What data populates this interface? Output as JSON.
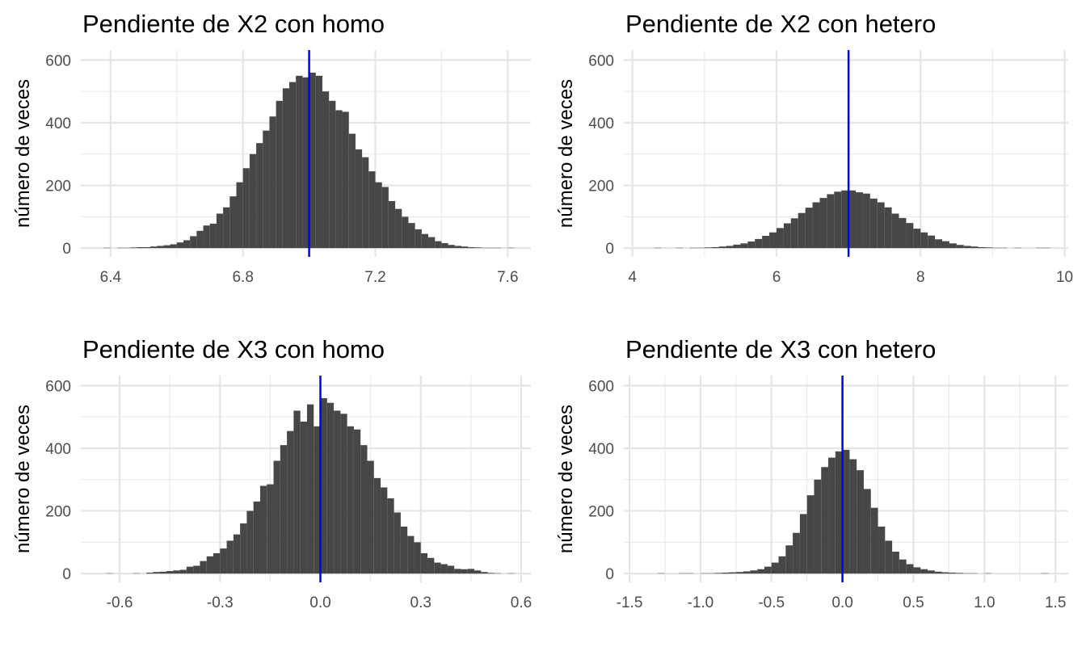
{
  "chart_data": [
    {
      "type": "histogram",
      "title": "Pendiente de X2 con homo",
      "y_label": "número de veces",
      "color": "#474747",
      "grid": true,
      "vline": {
        "value": 7,
        "color": "#0000ff"
      },
      "bins": [
        6.38,
        6.4,
        6.42,
        6.44,
        6.46,
        6.48,
        6.5,
        6.52,
        6.54,
        6.56,
        6.58,
        6.6,
        6.62,
        6.64,
        6.66,
        6.68,
        6.7,
        6.72,
        6.74,
        6.76,
        6.78,
        6.8,
        6.82,
        6.84,
        6.86,
        6.88,
        6.9,
        6.92,
        6.94,
        6.96,
        6.98,
        7.0,
        7.02,
        7.04,
        7.06,
        7.08,
        7.1,
        7.12,
        7.14,
        7.16,
        7.18,
        7.2,
        7.22,
        7.24,
        7.26,
        7.28,
        7.3,
        7.32,
        7.34,
        7.36,
        7.38,
        7.4,
        7.42,
        7.44,
        7.46,
        7.48,
        7.5,
        7.52,
        7.54,
        7.56,
        7.58,
        7.6,
        7.62
      ],
      "values": [
        1,
        0,
        1,
        1,
        2,
        3,
        3,
        5,
        7,
        9,
        12,
        18,
        25,
        38,
        55,
        72,
        78,
        110,
        130,
        165,
        210,
        255,
        300,
        335,
        375,
        420,
        470,
        510,
        530,
        550,
        545,
        560,
        550,
        500,
        470,
        440,
        435,
        365,
        315,
        290,
        245,
        210,
        195,
        150,
        125,
        100,
        80,
        60,
        45,
        35,
        22,
        16,
        10,
        7,
        5,
        3,
        2,
        1,
        1,
        1,
        0,
        1
      ],
      "xlim": [
        6.31,
        7.67
      ],
      "xticks": [
        6.4,
        6.8,
        7.2,
        7.6
      ],
      "ylim": [
        -28,
        632
      ],
      "yticks": [
        0,
        200,
        400,
        600
      ]
    },
    {
      "type": "histogram",
      "title": "Pendiente de X2 con hetero",
      "y_label": "número de veces",
      "color": "#474747",
      "grid": true,
      "vline": {
        "value": 7,
        "color": "#0000ff"
      },
      "bins": [
        4.2,
        4.3,
        4.4,
        4.5,
        4.6,
        4.7,
        4.8,
        4.9,
        5.0,
        5.1,
        5.2,
        5.3,
        5.4,
        5.5,
        5.6,
        5.7,
        5.8,
        5.9,
        6.0,
        6.1,
        6.2,
        6.3,
        6.4,
        6.5,
        6.6,
        6.7,
        6.8,
        6.9,
        7.0,
        7.1,
        7.2,
        7.3,
        7.4,
        7.5,
        7.6,
        7.7,
        7.8,
        7.9,
        8.0,
        8.1,
        8.2,
        8.3,
        8.4,
        8.5,
        8.6,
        8.7,
        8.8,
        8.9,
        9.0,
        9.1,
        9.2,
        9.3,
        9.4,
        9.5,
        9.6,
        9.7,
        9.8
      ],
      "values": [
        0,
        1,
        0,
        0,
        1,
        0,
        1,
        1,
        2,
        3,
        5,
        7,
        11,
        15,
        21,
        29,
        39,
        50,
        64,
        79,
        95,
        112,
        129,
        146,
        160,
        172,
        180,
        184,
        184,
        178,
        174,
        158,
        146,
        130,
        110,
        96,
        80,
        62,
        50,
        40,
        28,
        22,
        15,
        10,
        7,
        5,
        3,
        2,
        1,
        1,
        0,
        1,
        0,
        0,
        1,
        1
      ],
      "xlim": [
        3.88,
        10.05
      ],
      "xticks": [
        4,
        6,
        8,
        10
      ],
      "ylim": [
        -28,
        632
      ],
      "yticks": [
        0,
        200,
        400,
        600
      ]
    },
    {
      "type": "histogram",
      "title": "Pendiente de X3 con homo",
      "y_label": "número de veces",
      "color": "#474747",
      "grid": true,
      "vline": {
        "value": 0,
        "color": "#0000ff"
      },
      "bins": [
        -0.64,
        -0.62,
        -0.6,
        -0.58,
        -0.56,
        -0.54,
        -0.52,
        -0.5,
        -0.48,
        -0.46,
        -0.44,
        -0.42,
        -0.4,
        -0.38,
        -0.36,
        -0.34,
        -0.32,
        -0.3,
        -0.28,
        -0.26,
        -0.24,
        -0.22,
        -0.2,
        -0.18,
        -0.16,
        -0.14,
        -0.12,
        -0.1,
        -0.08,
        -0.06,
        -0.04,
        -0.02,
        0,
        0.02,
        0.04,
        0.06,
        0.08,
        0.1,
        0.12,
        0.14,
        0.16,
        0.18,
        0.2,
        0.22,
        0.24,
        0.26,
        0.28,
        0.3,
        0.32,
        0.34,
        0.36,
        0.38,
        0.4,
        0.42,
        0.44,
        0.46,
        0.48,
        0.5,
        0.52,
        0.54,
        0.56,
        0.58
      ],
      "values": [
        1,
        0,
        0,
        0,
        1,
        0,
        3,
        5,
        6,
        8,
        10,
        12,
        22,
        25,
        40,
        55,
        65,
        80,
        105,
        125,
        160,
        200,
        230,
        280,
        285,
        360,
        410,
        455,
        520,
        485,
        540,
        470,
        560,
        545,
        520,
        510,
        470,
        460,
        410,
        360,
        305,
        275,
        240,
        195,
        150,
        120,
        100,
        65,
        50,
        35,
        30,
        25,
        15,
        14,
        15,
        10,
        5,
        2,
        1,
        0,
        1
      ],
      "xlim": [
        -0.716,
        0.629
      ],
      "xticks": [
        -0.6,
        -0.3,
        {
          "value": 0,
          "label": "0.0"
        },
        0.3,
        0.6
      ],
      "ylim": [
        -28,
        632
      ],
      "yticks": [
        0,
        200,
        400,
        600
      ]
    },
    {
      "type": "histogram",
      "title": "Pendiente de X3 con hetero",
      "y_label": "número de veces",
      "color": "#474747",
      "grid": true,
      "vline": {
        "value": 0,
        "color": "#0000ff"
      },
      "bins": [
        -1.4,
        -1.35,
        -1.3,
        -1.25,
        -1.2,
        -1.15,
        -1.1,
        -1.05,
        -1.0,
        -0.95,
        -0.9,
        -0.85,
        -0.8,
        -0.75,
        -0.7,
        -0.65,
        -0.6,
        -0.55,
        -0.5,
        -0.45,
        -0.4,
        -0.35,
        -0.3,
        -0.25,
        -0.2,
        -0.15,
        -0.1,
        -0.05,
        0,
        0.05,
        0.1,
        0.15,
        0.2,
        0.25,
        0.3,
        0.35,
        0.4,
        0.45,
        0.5,
        0.55,
        0.6,
        0.65,
        0.7,
        0.75,
        0.8,
        0.85,
        0.9,
        0.95,
        1.0,
        1.05,
        1.1,
        1.15,
        1.2,
        1.25,
        1.3,
        1.35,
        1.4,
        1.45
      ],
      "values": [
        0,
        0,
        1,
        0,
        0,
        1,
        1,
        0,
        1,
        1,
        2,
        3,
        4,
        5,
        7,
        10,
        14,
        22,
        35,
        55,
        90,
        130,
        190,
        250,
        300,
        340,
        370,
        390,
        395,
        365,
        330,
        270,
        210,
        150,
        105,
        70,
        45,
        30,
        20,
        14,
        10,
        6,
        4,
        3,
        2,
        1,
        1,
        0,
        1,
        0,
        0,
        0,
        0,
        0,
        0,
        0,
        1
      ],
      "xlim": [
        -1.54,
        1.59
      ],
      "xticks": [
        -1.5,
        {
          "value": -1,
          "label": "-1.0"
        },
        -0.5,
        {
          "value": 0,
          "label": "0.0"
        },
        0.5,
        {
          "value": 1,
          "label": "1.0"
        },
        1.5
      ],
      "ylim": [
        -28,
        632
      ],
      "yticks": [
        0,
        200,
        400,
        600
      ]
    }
  ]
}
